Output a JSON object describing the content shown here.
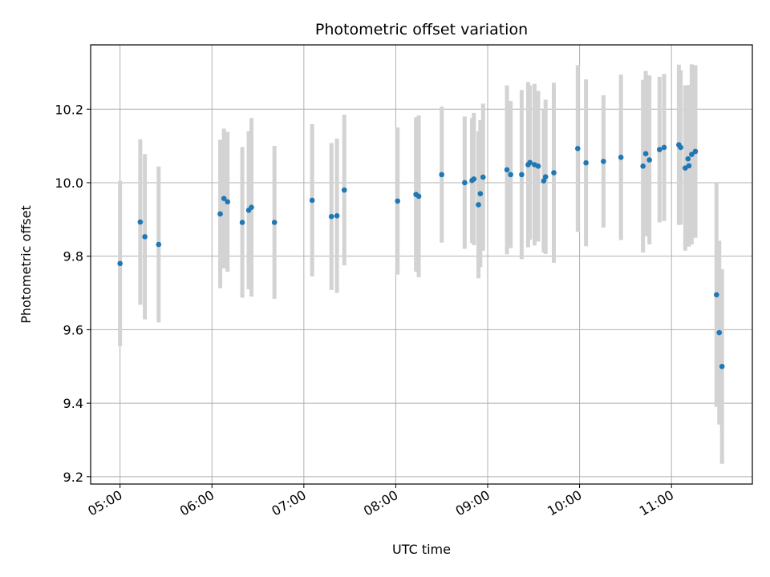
{
  "chart_data": {
    "type": "scatter",
    "title": "Photometric offset variation",
    "xlabel": "UTC time",
    "ylabel": "Photometric offset",
    "grid": true,
    "x_unit": "UTC time of day (hours)",
    "xlim": [
      4.68,
      11.88
    ],
    "ylim": [
      9.18,
      10.375
    ],
    "xticks": [
      5,
      6,
      7,
      8,
      9,
      10,
      11
    ],
    "xtick_labels": [
      "05:00",
      "06:00",
      "07:00",
      "08:00",
      "09:00",
      "10:00",
      "11:00"
    ],
    "yticks": [
      9.2,
      9.4,
      9.6,
      9.8,
      10.0,
      10.2
    ],
    "ytick_labels": [
      "9.2",
      "9.4",
      "9.6",
      "9.8",
      "10.0",
      "10.2"
    ],
    "colors": {
      "point": "#1f77b4",
      "errorbar": "#d3d3d3",
      "grid": "#b0b0b0"
    },
    "series": [
      {
        "x": [
          5.0,
          5.22,
          5.27,
          5.42,
          6.09,
          6.13,
          6.17,
          6.33,
          6.4,
          6.43,
          6.68,
          7.09,
          7.3,
          7.36,
          7.44,
          8.02,
          8.22,
          8.25,
          8.5,
          8.75,
          8.83,
          8.85,
          8.9,
          8.92,
          8.95,
          9.21,
          9.25,
          9.37,
          9.44,
          9.46,
          9.51,
          9.55,
          9.61,
          9.63,
          9.72,
          9.98,
          10.07,
          10.26,
          10.45,
          10.69,
          10.72,
          10.76,
          10.87,
          10.92,
          11.08,
          11.1,
          11.15,
          11.18,
          11.19,
          11.22,
          11.26,
          11.49,
          11.52,
          11.55
        ],
        "y": [
          9.78,
          9.893,
          9.853,
          9.832,
          9.915,
          9.957,
          9.948,
          9.892,
          9.925,
          9.933,
          9.892,
          9.952,
          9.908,
          9.91,
          9.98,
          9.95,
          9.968,
          9.963,
          10.022,
          10.0,
          10.006,
          10.01,
          9.94,
          9.97,
          10.015,
          10.035,
          10.022,
          10.022,
          10.049,
          10.055,
          10.049,
          10.045,
          10.005,
          10.016,
          10.027,
          10.093,
          10.054,
          10.058,
          10.069,
          10.045,
          10.079,
          10.062,
          10.09,
          10.096,
          10.103,
          10.096,
          10.04,
          10.065,
          10.046,
          10.077,
          10.085,
          9.695,
          9.592,
          9.5
        ],
        "err": [
          0.225,
          0.225,
          0.225,
          0.212,
          0.202,
          0.19,
          0.19,
          0.205,
          0.215,
          0.243,
          0.208,
          0.207,
          0.2,
          0.21,
          0.205,
          0.2,
          0.21,
          0.22,
          0.185,
          0.18,
          0.17,
          0.18,
          0.2,
          0.2,
          0.2,
          0.23,
          0.2,
          0.23,
          0.225,
          0.21,
          0.22,
          0.205,
          0.195,
          0.21,
          0.245,
          0.227,
          0.227,
          0.18,
          0.225,
          0.235,
          0.225,
          0.23,
          0.198,
          0.2,
          0.218,
          0.21,
          0.225,
          0.2,
          0.22,
          0.245,
          0.235,
          0.305,
          0.25,
          0.265
        ]
      }
    ]
  }
}
